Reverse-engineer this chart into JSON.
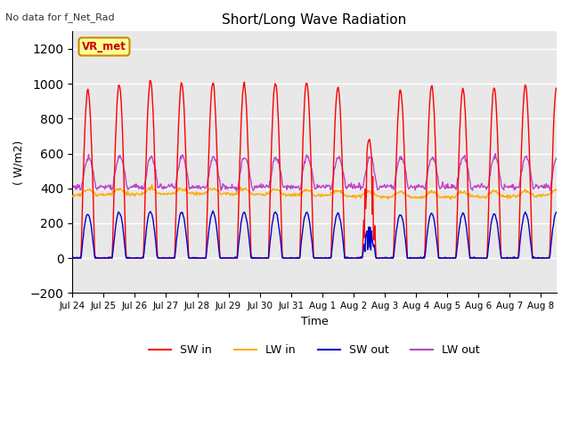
{
  "title": "Short/Long Wave Radiation",
  "xlabel": "Time",
  "ylabel": "( W/m2)",
  "ylim": [
    -200,
    1300
  ],
  "yticks": [
    -200,
    0,
    200,
    400,
    600,
    800,
    1000,
    1200
  ],
  "background_color": "#ffffff",
  "plot_bg_color": "#e8e8e8",
  "annotation_text": "No data for f_Net_Rad",
  "tag_text": "VR_met",
  "tag_bg": "#ffff99",
  "tag_border": "#cc8800",
  "tag_text_color": "#cc0000",
  "colors": {
    "SW_in": "#ff0000",
    "LW_in": "#ffaa00",
    "SW_out": "#0000cc",
    "LW_out": "#bb44cc"
  },
  "legend_labels": [
    "SW in",
    "LW in",
    "SW out",
    "LW out"
  ],
  "n_days": 15.5,
  "start_day": 204,
  "xtick_labels": [
    "Jul 24",
    "Jul 25",
    "Jul 26",
    "Jul 27",
    "Jul 28",
    "Jul 29",
    "Jul 30",
    "Jul 31",
    "Aug 1",
    "Aug 2",
    "Aug 3",
    "Aug 4",
    "Aug 5",
    "Aug 6",
    "Aug 7",
    "Aug 8"
  ],
  "grid_color": "#ffffff",
  "grid_linewidth": 1.0
}
